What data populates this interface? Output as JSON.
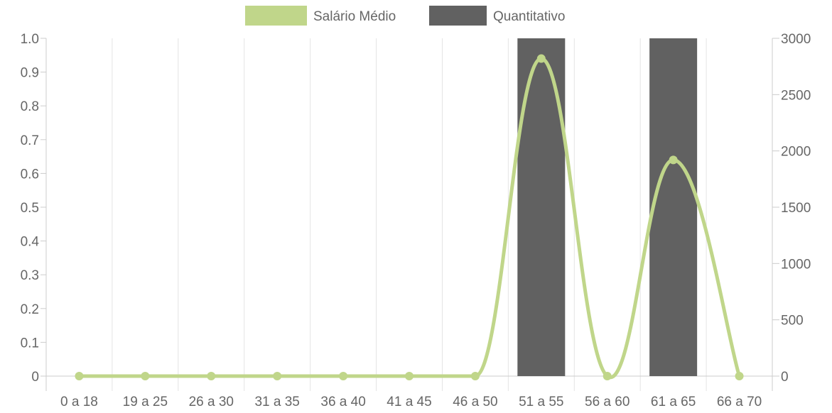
{
  "chart_data": {
    "type": "bar",
    "categories": [
      "0 a 18",
      "19 a 25",
      "26 a 30",
      "31 a 35",
      "36 a 40",
      "41 a 45",
      "46 a 50",
      "51 a 55",
      "56 a 60",
      "61 a 65",
      "66 a 70"
    ],
    "series": [
      {
        "name": "Salário Médio",
        "type": "line",
        "axis": "left",
        "color": "#c0d68a",
        "values": [
          0,
          0,
          0,
          0,
          0,
          0,
          0,
          0.94,
          0,
          0.64,
          0
        ]
      },
      {
        "name": "Quantitativo",
        "type": "bar",
        "axis": "right",
        "color": "#616161",
        "values": [
          0,
          0,
          0,
          0,
          0,
          0,
          0,
          3000,
          0,
          3000,
          0
        ]
      }
    ],
    "y_left": {
      "range": [
        0,
        1.0
      ],
      "ticks": [
        "0",
        "0.1",
        "0.2",
        "0.3",
        "0.4",
        "0.5",
        "0.6",
        "0.7",
        "0.8",
        "0.9",
        "1.0"
      ]
    },
    "y_right": {
      "range": [
        0,
        3000
      ],
      "ticks": [
        "0",
        "500",
        "1000",
        "1500",
        "2000",
        "2500",
        "3000"
      ]
    },
    "grid": "vertical",
    "legend_position": "top-center"
  }
}
